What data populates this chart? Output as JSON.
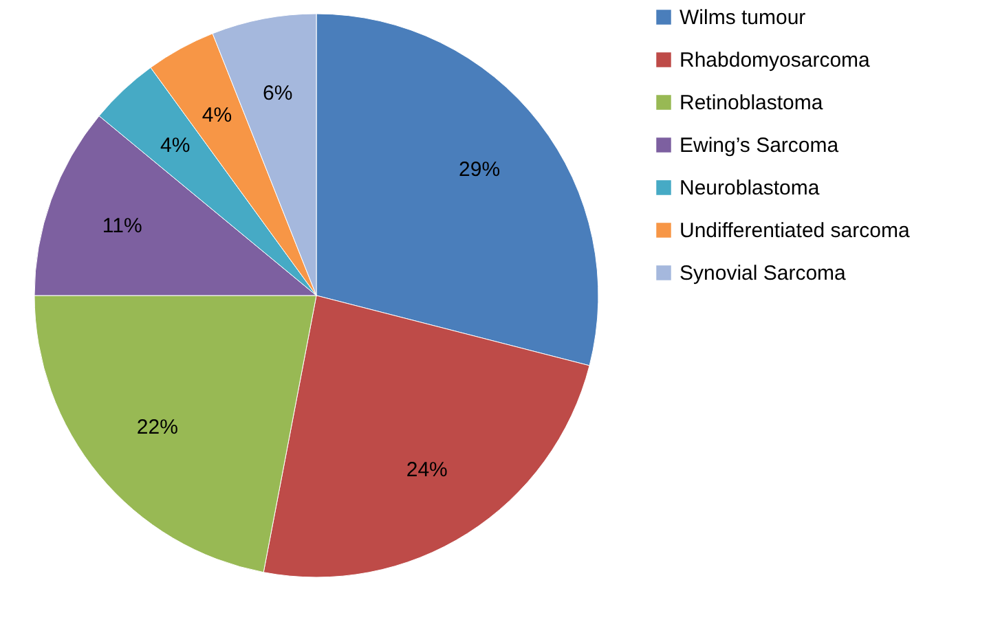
{
  "chart_data": {
    "type": "pie",
    "categories": [
      "Wilms tumour",
      "Rhabdomyosarcoma",
      "Retinoblastoma",
      "Ewing’s Sarcoma",
      "Neuroblastoma",
      "Undifferentiated sarcoma",
      "Synovial Sarcoma"
    ],
    "values": [
      29,
      24,
      22,
      11,
      4,
      4,
      6
    ],
    "value_labels": [
      "29%",
      "24%",
      "22%",
      "11%",
      "4%",
      "4%",
      "6%"
    ],
    "colors": [
      "#4a7ebb",
      "#be4b48",
      "#98b954",
      "#7d60a0",
      "#46aac5",
      "#f79646",
      "#a5b8dd"
    ],
    "legend": "right"
  }
}
